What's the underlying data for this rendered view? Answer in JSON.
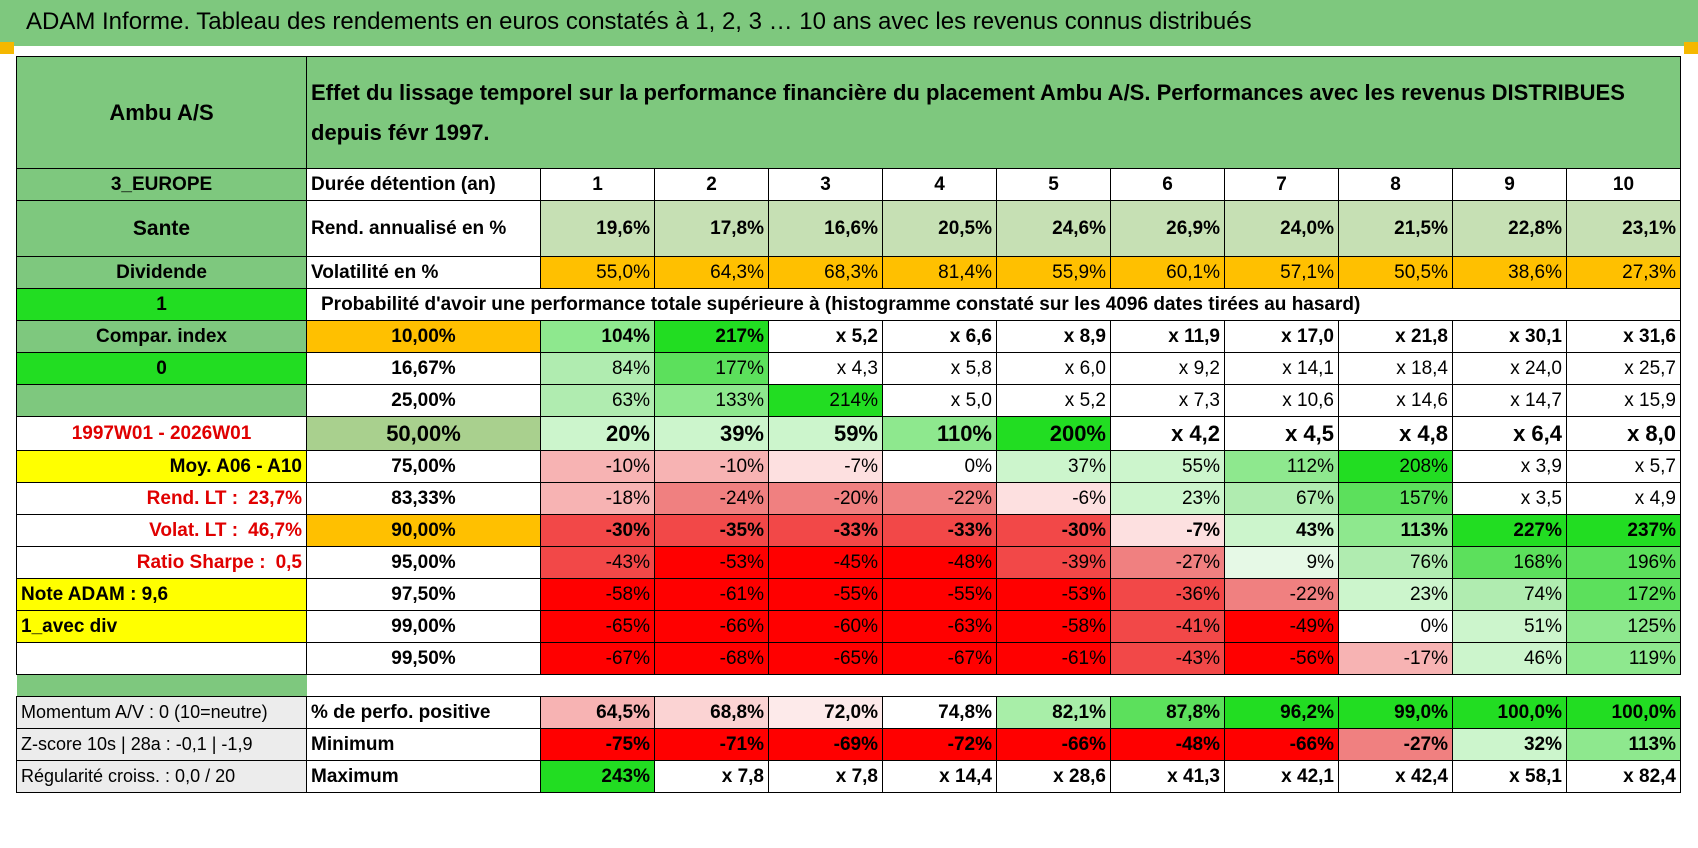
{
  "title": "ADAM Informe. Tableau des rendements en euros constatés à 1, 2, 3 … 10 ans avec les revenus connus distribués",
  "header": {
    "fund": "Ambu A/S",
    "description": "Effet du lissage temporel sur la performance financière du placement Ambu A/S. Performances avec les revenus DISTRIBUES depuis févr 1997."
  },
  "left_labels": {
    "region": "3_EUROPE",
    "sector": "Sante",
    "dividend": "Dividende",
    "flag1": "1",
    "compar": "Compar. index",
    "flag0": "0",
    "period": "1997W01 - 2026W01",
    "moy": "Moy. A06 - A10",
    "rend_lt_label": "Rend. LT :",
    "rend_lt_value": "23,7%",
    "volat_lt_label": "Volat. LT :",
    "volat_lt_value": "46,7%",
    "sharpe_label": "Ratio Sharpe :",
    "sharpe_value": "0,5",
    "note": "Note ADAM : 9,6",
    "div_mode": "1_avec div"
  },
  "metrics": {
    "duration_label": "Durée détention (an)",
    "years": [
      "1",
      "2",
      "3",
      "4",
      "5",
      "6",
      "7",
      "8",
      "9",
      "10"
    ],
    "rend_label": "Rend. annualisé en %",
    "rend": [
      "19,6%",
      "17,8%",
      "16,6%",
      "20,5%",
      "24,6%",
      "26,9%",
      "24,0%",
      "21,5%",
      "22,8%",
      "23,1%"
    ],
    "vol_label": "Volatilité en %",
    "vol": [
      "55,0%",
      "64,3%",
      "68,3%",
      "81,4%",
      "55,9%",
      "60,1%",
      "57,1%",
      "50,5%",
      "38,6%",
      "27,3%"
    ],
    "prob_label": "Probabilité d'avoir une performance totale supérieure à (histogramme constaté sur les 4096 dates tirées au hasard)"
  },
  "quantiles": [
    {
      "p": "10,00%",
      "values": [
        "104%",
        "217%",
        "x 5,2",
        "x 6,6",
        "x 8,9",
        "x 11,9",
        "x 17,0",
        "x 21,8",
        "x 30,1",
        "x 31,6"
      ]
    },
    {
      "p": "16,67%",
      "values": [
        "84%",
        "177%",
        "x 4,3",
        "x 5,8",
        "x 6,0",
        "x 9,2",
        "x 14,1",
        "x 18,4",
        "x 24,0",
        "x 25,7"
      ]
    },
    {
      "p": "25,00%",
      "values": [
        "63%",
        "133%",
        "214%",
        "x 5,0",
        "x 5,2",
        "x 7,3",
        "x 10,6",
        "x 14,6",
        "x 14,7",
        "x 15,9"
      ]
    },
    {
      "p": "50,00%",
      "values": [
        "20%",
        "39%",
        "59%",
        "110%",
        "200%",
        "x 4,2",
        "x 4,5",
        "x 4,8",
        "x 6,4",
        "x 8,0"
      ]
    },
    {
      "p": "75,00%",
      "values": [
        "-10%",
        "-10%",
        "-7%",
        "0%",
        "37%",
        "55%",
        "112%",
        "208%",
        "x 3,9",
        "x 5,7"
      ]
    },
    {
      "p": "83,33%",
      "values": [
        "-18%",
        "-24%",
        "-20%",
        "-22%",
        "-6%",
        "23%",
        "67%",
        "157%",
        "x 3,5",
        "x 4,9"
      ]
    },
    {
      "p": "90,00%",
      "values": [
        "-30%",
        "-35%",
        "-33%",
        "-33%",
        "-30%",
        "-7%",
        "43%",
        "113%",
        "227%",
        "237%"
      ]
    },
    {
      "p": "95,00%",
      "values": [
        "-43%",
        "-53%",
        "-45%",
        "-48%",
        "-39%",
        "-27%",
        "9%",
        "76%",
        "168%",
        "196%"
      ]
    },
    {
      "p": "97,50%",
      "values": [
        "-58%",
        "-61%",
        "-55%",
        "-55%",
        "-53%",
        "-36%",
        "-22%",
        "23%",
        "74%",
        "172%"
      ]
    },
    {
      "p": "99,00%",
      "values": [
        "-65%",
        "-66%",
        "-60%",
        "-63%",
        "-58%",
        "-41%",
        "-49%",
        "0%",
        "51%",
        "125%"
      ]
    },
    {
      "p": "99,50%",
      "values": [
        "-67%",
        "-68%",
        "-65%",
        "-67%",
        "-61%",
        "-43%",
        "-56%",
        "-17%",
        "46%",
        "119%"
      ]
    }
  ],
  "bottom": [
    {
      "left": "Momentum A/V : 0 (10=neutre)",
      "label": "% de perfo. positive",
      "values": [
        "64,5%",
        "68,8%",
        "72,0%",
        "74,8%",
        "82,1%",
        "87,8%",
        "96,2%",
        "99,0%",
        "100,0%",
        "100,0%"
      ]
    },
    {
      "left": "Z-score 10s | 28a : -0,1 | -1,9",
      "label": "Minimum",
      "values": [
        "-75%",
        "-71%",
        "-69%",
        "-72%",
        "-66%",
        "-48%",
        "-66%",
        "-27%",
        "32%",
        "113%"
      ]
    },
    {
      "left": "Régularité croiss. : 0,0 / 20",
      "label": "Maximum",
      "values": [
        "243%",
        "x 7,8",
        "x 7,8",
        "x 14,4",
        "x 28,6",
        "x 41,3",
        "x 42,1",
        "x 42,4",
        "x 58,1",
        "x 82,4"
      ]
    }
  ],
  "colors": {
    "header_green": "#7ec87e",
    "bright_green": "#22dd22",
    "yellow": "#ffff00",
    "orange": "#ffc000",
    "red": "#ff0000",
    "light_green": "#c6e0b4"
  }
}
